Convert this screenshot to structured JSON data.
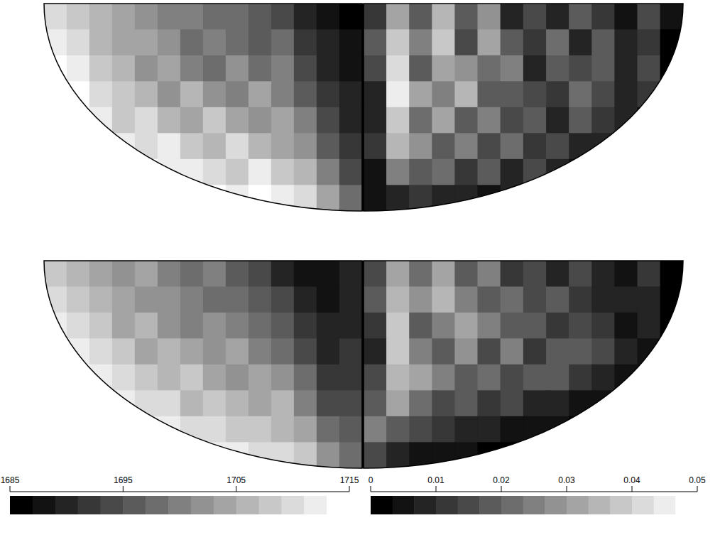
{
  "chart_data": [
    {
      "type": "heatmap",
      "panels": [
        {
          "cells": [
            [
              1709,
              1707,
              1705,
              1703,
              1702,
              1700,
              1699,
              1697,
              1697,
              1695,
              1693,
              1690,
              1687,
              1685
            ],
            [
              1711,
              1709,
              1706,
              1703,
              1704,
              1701,
              1698,
              1700,
              1697,
              1696,
              1697,
              1692,
              1689,
              1687
            ],
            [
              1713,
              1711,
              1707,
              1705,
              1702,
              1704,
              1700,
              1698,
              1701,
              1697,
              1699,
              1694,
              1690,
              1688
            ],
            [
              1715,
              1713,
              1709,
              1707,
              1706,
              1702,
              1705,
              1701,
              1699,
              1703,
              1700,
              1696,
              1692,
              1689
            ],
            [
              1715,
              1715,
              1712,
              1708,
              1710,
              1706,
              1703,
              1707,
              1704,
              1701,
              1704,
              1699,
              1694,
              1690
            ],
            [
              1715,
              1715,
              1714,
              1712,
              1709,
              1711,
              1708,
              1705,
              1709,
              1706,
              1703,
              1702,
              1696,
              1692
            ],
            [
              1715,
              1715,
              1715,
              1714,
              1713,
              1712,
              1711,
              1710,
              1708,
              1711,
              1707,
              1705,
              1699,
              1694
            ],
            [
              1715,
              1715,
              1715,
              1715,
              1715,
              1714,
              1714,
              1713,
              1712,
              1713,
              1711,
              1709,
              1704,
              1698
            ]
          ]
        },
        {
          "cells": [
            [
              1708,
              1706,
              1704,
              1702,
              1703,
              1700,
              1698,
              1699,
              1696,
              1694,
              1690,
              1688,
              1687,
              1689
            ],
            [
              1710,
              1708,
              1705,
              1704,
              1701,
              1702,
              1699,
              1697,
              1698,
              1696,
              1693,
              1690,
              1688,
              1689
            ],
            [
              1712,
              1710,
              1707,
              1703,
              1705,
              1701,
              1700,
              1702,
              1699,
              1698,
              1695,
              1692,
              1689,
              1690
            ],
            [
              1714,
              1712,
              1709,
              1707,
              1704,
              1706,
              1703,
              1701,
              1703,
              1700,
              1698,
              1694,
              1690,
              1691
            ],
            [
              1715,
              1714,
              1711,
              1709,
              1708,
              1705,
              1707,
              1704,
              1702,
              1704,
              1701,
              1697,
              1692,
              1692
            ],
            [
              1715,
              1715,
              1713,
              1711,
              1710,
              1709,
              1706,
              1708,
              1705,
              1703,
              1705,
              1700,
              1694,
              1693
            ],
            [
              1715,
              1715,
              1715,
              1713,
              1712,
              1711,
              1710,
              1709,
              1708,
              1707,
              1706,
              1703,
              1697,
              1695
            ],
            [
              1715,
              1715,
              1715,
              1715,
              1714,
              1714,
              1713,
              1712,
              1711,
              1710,
              1709,
              1707,
              1702,
              1698
            ]
          ]
        }
      ],
      "colorbar_range": [
        1685,
        1715
      ],
      "colorbar_ticks": [
        1685,
        1695,
        1705,
        1715
      ]
    },
    {
      "type": "heatmap",
      "panels": [
        {
          "cells": [
            [
              0.012,
              0.03,
              0.018,
              0.035,
              0.02,
              0.028,
              0.01,
              0.015,
              0.008,
              0.02,
              0.012,
              0.006,
              0.015,
              0.004
            ],
            [
              0.02,
              0.038,
              0.025,
              0.04,
              0.015,
              0.03,
              0.018,
              0.012,
              0.022,
              0.01,
              0.018,
              0.008,
              0.012,
              0.003
            ],
            [
              0.015,
              0.042,
              0.02,
              0.032,
              0.028,
              0.022,
              0.025,
              0.01,
              0.018,
              0.015,
              0.02,
              0.01,
              0.014,
              0.003
            ],
            [
              0.01,
              0.045,
              0.03,
              0.025,
              0.035,
              0.018,
              0.02,
              0.015,
              0.012,
              0.022,
              0.016,
              0.008,
              0.012,
              0.002
            ],
            [
              0.008,
              0.04,
              0.022,
              0.03,
              0.02,
              0.025,
              0.015,
              0.02,
              0.01,
              0.018,
              0.012,
              0.01,
              0.006,
              0.002
            ],
            [
              0.012,
              0.035,
              0.028,
              0.018,
              0.024,
              0.015,
              0.022,
              0.012,
              0.016,
              0.01,
              0.008,
              0.004,
              0.002,
              0.001
            ],
            [
              0.006,
              0.025,
              0.018,
              0.022,
              0.012,
              0.018,
              0.01,
              0.014,
              0.008,
              0.006,
              0.004,
              0.002,
              0.001,
              0.001
            ],
            [
              0.004,
              0.01,
              0.012,
              0.008,
              0.01,
              0.006,
              0.008,
              0.005,
              0.004,
              0.003,
              0.002,
              0.001,
              0.001,
              0.001
            ]
          ]
        },
        {
          "cells": [
            [
              0.015,
              0.032,
              0.022,
              0.03,
              0.018,
              0.026,
              0.012,
              0.016,
              0.01,
              0.014,
              0.008,
              0.006,
              0.012,
              0.003
            ],
            [
              0.018,
              0.036,
              0.028,
              0.034,
              0.024,
              0.02,
              0.022,
              0.014,
              0.018,
              0.012,
              0.01,
              0.008,
              0.01,
              0.003
            ],
            [
              0.012,
              0.04,
              0.02,
              0.026,
              0.03,
              0.024,
              0.018,
              0.02,
              0.012,
              0.016,
              0.012,
              0.006,
              0.008,
              0.002
            ],
            [
              0.01,
              0.038,
              0.026,
              0.02,
              0.028,
              0.016,
              0.024,
              0.012,
              0.018,
              0.02,
              0.014,
              0.008,
              0.006,
              0.002
            ],
            [
              0.014,
              0.036,
              0.03,
              0.024,
              0.018,
              0.022,
              0.014,
              0.018,
              0.02,
              0.012,
              0.01,
              0.006,
              0.004,
              0.001
            ],
            [
              0.02,
              0.03,
              0.022,
              0.016,
              0.02,
              0.012,
              0.016,
              0.01,
              0.008,
              0.006,
              0.004,
              0.002,
              0.001,
              0.001
            ],
            [
              0.024,
              0.02,
              0.016,
              0.012,
              0.01,
              0.008,
              0.006,
              0.005,
              0.004,
              0.003,
              0.002,
              0.001,
              0.001,
              0.001
            ],
            [
              0.014,
              0.008,
              0.006,
              0.005,
              0.004,
              0.003,
              0.002,
              0.002,
              0.001,
              0.001,
              0.001,
              0.001,
              0.001,
              0.001
            ]
          ]
        }
      ],
      "colorbar_range": [
        0,
        0.05
      ],
      "colorbar_ticks": [
        0,
        0.01,
        0.02,
        0.03,
        0.04,
        0.05
      ]
    }
  ]
}
